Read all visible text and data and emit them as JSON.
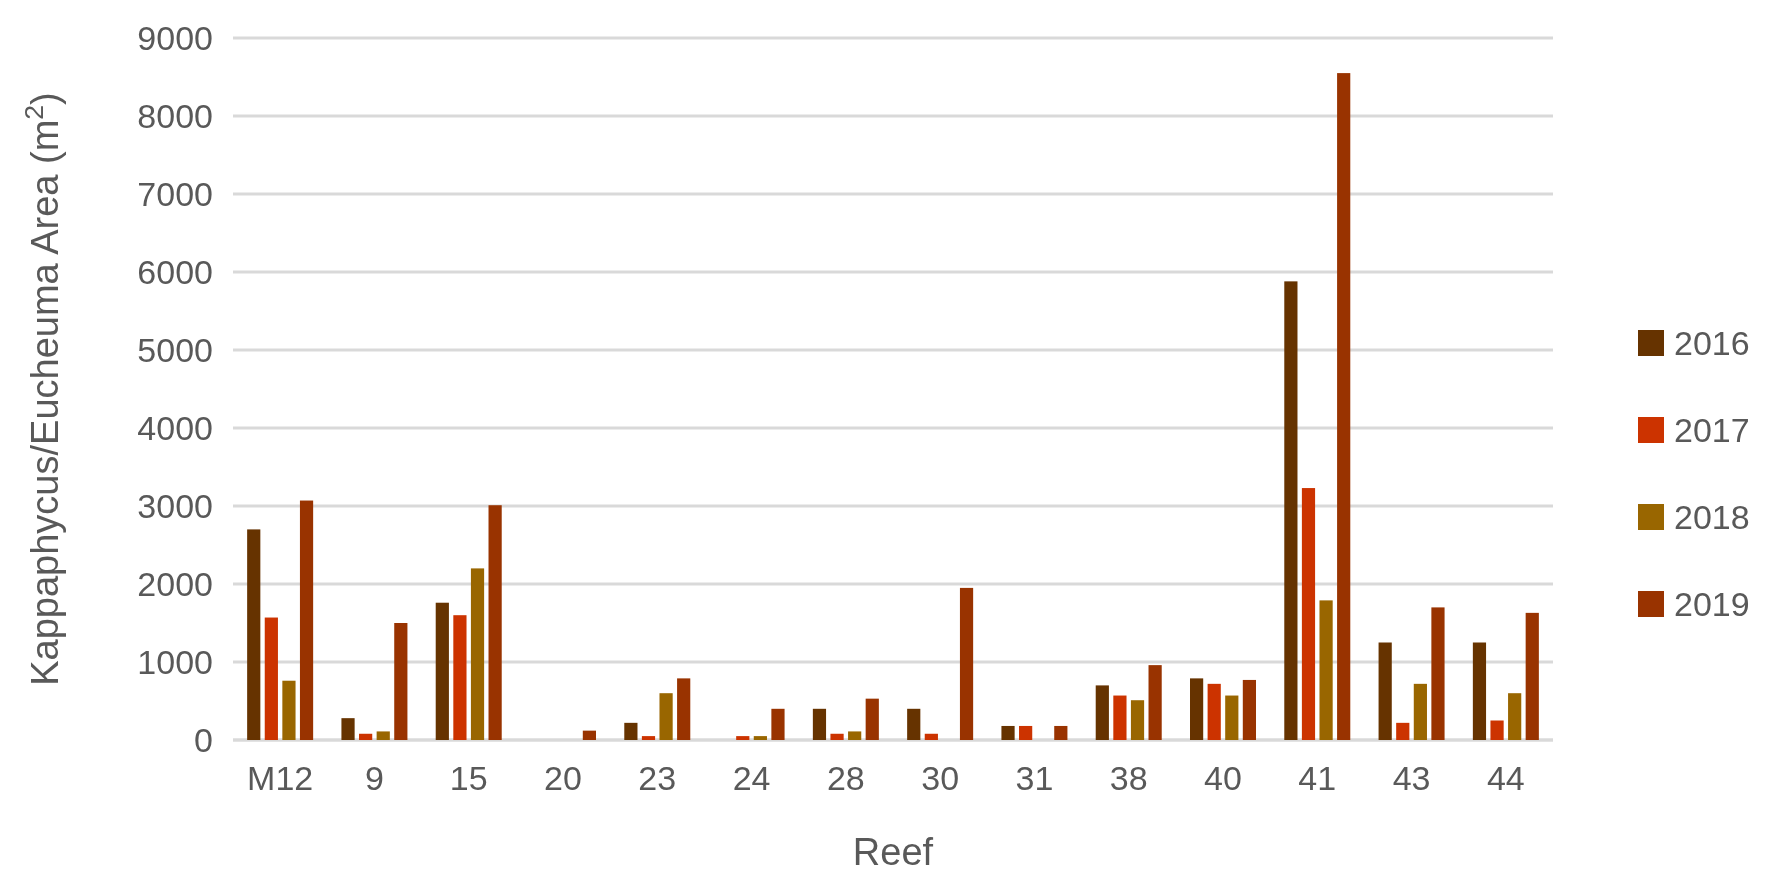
{
  "chart_data": {
    "type": "bar",
    "xlabel": "Reef",
    "ylabel": "Kappaphycus/Eucheuma Area (m$^{2}$)",
    "categories": [
      "M12",
      "9",
      "15",
      "20",
      "23",
      "24",
      "28",
      "30",
      "31",
      "38",
      "40",
      "41",
      "43",
      "44"
    ],
    "series": [
      {
        "name": "2016",
        "color": "#663300",
        "values": [
          2700,
          280,
          1760,
          0,
          220,
          0,
          400,
          400,
          180,
          700,
          790,
          5880,
          1250,
          1250
        ]
      },
      {
        "name": "2017",
        "color": "#cc3300",
        "values": [
          1570,
          80,
          1600,
          0,
          50,
          50,
          80,
          80,
          180,
          570,
          720,
          3230,
          220,
          250
        ]
      },
      {
        "name": "2018",
        "color": "#996600",
        "values": [
          760,
          110,
          2200,
          0,
          600,
          50,
          110,
          0,
          0,
          510,
          570,
          1790,
          720,
          600
        ]
      },
      {
        "name": "2019",
        "color": "#993300",
        "values": [
          3070,
          1500,
          3010,
          120,
          790,
          400,
          530,
          1950,
          180,
          960,
          770,
          8550,
          1700,
          1630
        ]
      }
    ],
    "ylim": [
      0,
      9000
    ],
    "yticks": [
      0,
      1000,
      2000,
      3000,
      4000,
      5000,
      6000,
      7000,
      8000,
      9000
    ],
    "grid": "y",
    "legend": "right"
  }
}
